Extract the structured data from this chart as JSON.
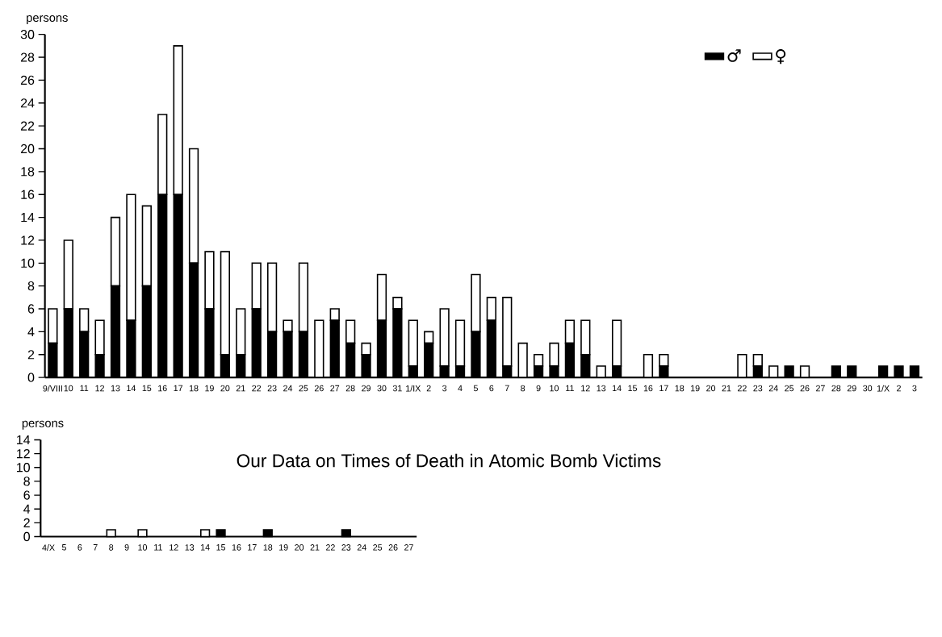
{
  "chart_data": [
    {
      "type": "bar",
      "stacked": true,
      "ylabel": "persons",
      "ylim": [
        0,
        30
      ],
      "yticks": [
        0,
        2,
        4,
        6,
        8,
        10,
        12,
        14,
        16,
        18,
        20,
        22,
        24,
        26,
        28,
        30
      ],
      "legend": "top right",
      "categories": [
        "9/VIII",
        "10",
        "11",
        "12",
        "13",
        "14",
        "15",
        "16",
        "17",
        "18",
        "19",
        "20",
        "21",
        "22",
        "23",
        "24",
        "25",
        "26",
        "27",
        "28",
        "29",
        "30",
        "31",
        "1/IX",
        "2",
        "3",
        "4",
        "5",
        "6",
        "7",
        "8",
        "9",
        "10",
        "11",
        "12",
        "13",
        "14",
        "15",
        "16",
        "17",
        "18",
        "19",
        "20",
        "21",
        "22",
        "23",
        "24",
        "25",
        "26",
        "27",
        "28",
        "29",
        "30",
        "1/X",
        "2",
        "3"
      ],
      "series": [
        {
          "name": "♂",
          "color": "#000000",
          "values": [
            3,
            6,
            4,
            2,
            8,
            5,
            8,
            16,
            16,
            10,
            6,
            2,
            2,
            6,
            4,
            4,
            4,
            0,
            5,
            3,
            2,
            5,
            6,
            1,
            3,
            1,
            1,
            4,
            5,
            1,
            0,
            1,
            1,
            3,
            2,
            0,
            1,
            0,
            0,
            1,
            0,
            0,
            0,
            0,
            0,
            1,
            0,
            1,
            0,
            0,
            1,
            1,
            0,
            1,
            1,
            1
          ]
        },
        {
          "name": "♀",
          "color": "#ffffff",
          "values": [
            3,
            6,
            2,
            3,
            6,
            11,
            7,
            7,
            13,
            10,
            5,
            9,
            4,
            4,
            6,
            1,
            6,
            5,
            1,
            2,
            1,
            4,
            1,
            4,
            1,
            5,
            4,
            5,
            2,
            6,
            3,
            1,
            2,
            2,
            3,
            1,
            4,
            0,
            2,
            1,
            0,
            0,
            0,
            0,
            2,
            1,
            1,
            0,
            1,
            0,
            0,
            0,
            0,
            0,
            0,
            0
          ]
        }
      ]
    },
    {
      "type": "bar",
      "stacked": true,
      "title": "Our Data on Times of Death in Atomic Bomb Victims",
      "ylabel": "persons",
      "ylim": [
        0,
        14
      ],
      "yticks": [
        0,
        2,
        4,
        6,
        8,
        10,
        12,
        14
      ],
      "categories": [
        "4/X",
        "5",
        "6",
        "7",
        "8",
        "9",
        "10",
        "11",
        "12",
        "13",
        "14",
        "15",
        "16",
        "17",
        "18",
        "19",
        "20",
        "21",
        "22",
        "23",
        "24",
        "25",
        "26",
        "27"
      ],
      "series": [
        {
          "color": "#000000",
          "values": [
            0,
            0,
            0,
            0,
            0,
            0,
            0,
            0,
            0,
            0,
            0,
            1,
            0,
            0,
            1,
            0,
            0,
            0,
            0,
            1,
            0,
            0,
            0,
            0
          ]
        },
        {
          "color": "#ffffff",
          "values": [
            0,
            0,
            0,
            0,
            1,
            0,
            1,
            0,
            0,
            0,
            1,
            0,
            0,
            0,
            0,
            0,
            0,
            0,
            0,
            0,
            0,
            0,
            0,
            0
          ]
        }
      ]
    }
  ]
}
